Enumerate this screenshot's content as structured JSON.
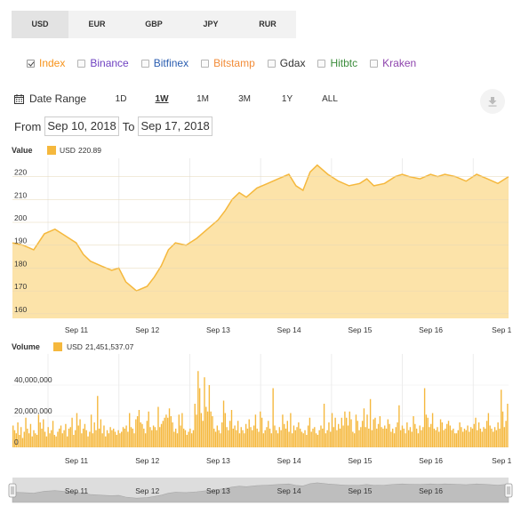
{
  "currency_tabs": [
    "USD",
    "EUR",
    "GBP",
    "JPY",
    "RUR"
  ],
  "active_currency": "USD",
  "exchanges": [
    {
      "label": "Index",
      "checked": true,
      "color": "#f7931a"
    },
    {
      "label": "Binance",
      "checked": false,
      "color": "#6f42c1"
    },
    {
      "label": "Bitfinex",
      "checked": false,
      "color": "#2a5db0"
    },
    {
      "label": "Bitstamp",
      "checked": false,
      "color": "#f28c38"
    },
    {
      "label": "Gdax",
      "checked": false,
      "color": "#333333"
    },
    {
      "label": "Hitbtc",
      "checked": false,
      "color": "#3c8d3c"
    },
    {
      "label": "Kraken",
      "checked": false,
      "color": "#8e44ad"
    }
  ],
  "date_range": {
    "label": "Date Range",
    "buttons": [
      "1D",
      "1W",
      "1M",
      "3M",
      "1Y",
      "ALL"
    ],
    "active": "1W",
    "from_label": "From",
    "from": "Sep 10, 2018",
    "to_label": "To",
    "to": "Sep 17, 2018"
  },
  "colors": {
    "series_fill": "#fce3a9",
    "series_line": "#f5b83d",
    "bar": "#f5b83d",
    "nav_fill": "#c9c9c9"
  },
  "chart_data": [
    {
      "type": "area",
      "title": "Value",
      "legend": {
        "label": "USD",
        "value": "220.89"
      },
      "x_ticks": [
        "Sep 11",
        "Sep 12",
        "Sep 13",
        "Sep 14",
        "Sep 15",
        "Sep 16",
        "Sep 1"
      ],
      "y_ticks": [
        160,
        170,
        180,
        190,
        200,
        210,
        220
      ],
      "ylim": [
        158,
        228
      ],
      "xlim": [
        0,
        7
      ],
      "grid": true,
      "series": [
        {
          "x": [
            0,
            0.15,
            0.3,
            0.45,
            0.6,
            0.75,
            0.9,
            1.0,
            1.1,
            1.25,
            1.4,
            1.5,
            1.6,
            1.75,
            1.9,
            2.0,
            2.1,
            2.2,
            2.3,
            2.45,
            2.6,
            2.75,
            2.9,
            3.0,
            3.1,
            3.2,
            3.3,
            3.45,
            3.6,
            3.75,
            3.9,
            4.0,
            4.1,
            4.2,
            4.3,
            4.45,
            4.6,
            4.75,
            4.9,
            5.0,
            5.1,
            5.25,
            5.4,
            5.5,
            5.6,
            5.75,
            5.9,
            6.0,
            6.1,
            6.25,
            6.4,
            6.55,
            6.7,
            6.85,
            7.0
          ],
          "y": [
            191,
            190,
            188,
            195,
            197,
            194,
            191,
            186,
            183,
            181,
            179,
            180,
            174,
            170,
            172,
            176,
            181,
            188,
            191,
            190,
            193,
            197,
            201,
            205,
            210,
            213,
            211,
            215,
            217,
            219,
            221,
            216,
            214,
            222,
            225,
            221,
            218,
            216,
            217,
            219,
            216,
            217,
            220,
            221,
            220,
            219,
            221,
            220,
            221,
            220,
            218,
            221,
            219,
            217,
            220
          ]
        }
      ]
    },
    {
      "type": "bar",
      "title": "Volume",
      "legend": {
        "label": "USD",
        "value": "21,451,537.07"
      },
      "x_ticks": [
        "Sep 11",
        "Sep 12",
        "Sep 13",
        "Sep 14",
        "Sep 15",
        "Sep 16",
        "Sep 1"
      ],
      "y_ticks": [
        0,
        20000000,
        40000000
      ],
      "y_tick_labels": [
        "0",
        "20,000,000",
        "40,000,000"
      ],
      "ylim": [
        0,
        60000000
      ],
      "xlim": [
        0,
        7
      ],
      "grid": true,
      "values": [
        14,
        11,
        9,
        16,
        8,
        13,
        6,
        10,
        19,
        12,
        9,
        15,
        7,
        11,
        9,
        8,
        21,
        16,
        12,
        18,
        10,
        7,
        13,
        9,
        11,
        17,
        8,
        7,
        10,
        12,
        14,
        9,
        11,
        15,
        7,
        12,
        13,
        19,
        8,
        11,
        22,
        14,
        18,
        9,
        12,
        15,
        11,
        7,
        10,
        21,
        9,
        16,
        11,
        33,
        12,
        18,
        9,
        14,
        7,
        11,
        9,
        13,
        11,
        12,
        10,
        8,
        11,
        9,
        10,
        13,
        12,
        14,
        10,
        22,
        13,
        12,
        9,
        18,
        20,
        24,
        16,
        15,
        12,
        9,
        17,
        23,
        13,
        11,
        14,
        13,
        11,
        26,
        13,
        15,
        17,
        19,
        21,
        19,
        25,
        20,
        16,
        10,
        12,
        9,
        21,
        14,
        22,
        12,
        11,
        8,
        10,
        12,
        9,
        11,
        28,
        21,
        49,
        38,
        22,
        17,
        45,
        26,
        23,
        40,
        23,
        20,
        12,
        10,
        14,
        11,
        9,
        16,
        30,
        22,
        13,
        11,
        17,
        24,
        12,
        14,
        11,
        17,
        9,
        13,
        11,
        9,
        15,
        12,
        18,
        13,
        11,
        14,
        21,
        12,
        10,
        23,
        19,
        9,
        11,
        13,
        17,
        12,
        9,
        38,
        14,
        11,
        9,
        13,
        11,
        21,
        15,
        12,
        17,
        10,
        22,
        9,
        14,
        11,
        13,
        16,
        12,
        10,
        9,
        11,
        8,
        14,
        19,
        10,
        12,
        13,
        9,
        8,
        11,
        14,
        12,
        28,
        9,
        11,
        16,
        10,
        22,
        13,
        19,
        11,
        15,
        12,
        19,
        14,
        23,
        19,
        14,
        23,
        18,
        10,
        9,
        21,
        17,
        11,
        13,
        17,
        25,
        13,
        21,
        12,
        31,
        11,
        18,
        19,
        12,
        15,
        20,
        13,
        12,
        14,
        12,
        18,
        15,
        10,
        12,
        9,
        13,
        16,
        27,
        11,
        14,
        12,
        9,
        16,
        11,
        13,
        10,
        20,
        15,
        12,
        9,
        14,
        11,
        13,
        38,
        21,
        19,
        13,
        15,
        22,
        12,
        11,
        13,
        10,
        18,
        16,
        11,
        12,
        15,
        17,
        14,
        11,
        12,
        9,
        9,
        11,
        16,
        13,
        10,
        12,
        11,
        14,
        10,
        13,
        12,
        15,
        19,
        11,
        16,
        12,
        10,
        13,
        12,
        17,
        22,
        14,
        12,
        10,
        13,
        11,
        16,
        12,
        37,
        23,
        13,
        17,
        28
      ]
    }
  ],
  "navigator": {
    "x_ticks": [
      "Sep 11",
      "Sep 12",
      "Sep 13",
      "Sep 14",
      "Sep 15",
      "Sep 16"
    ]
  }
}
